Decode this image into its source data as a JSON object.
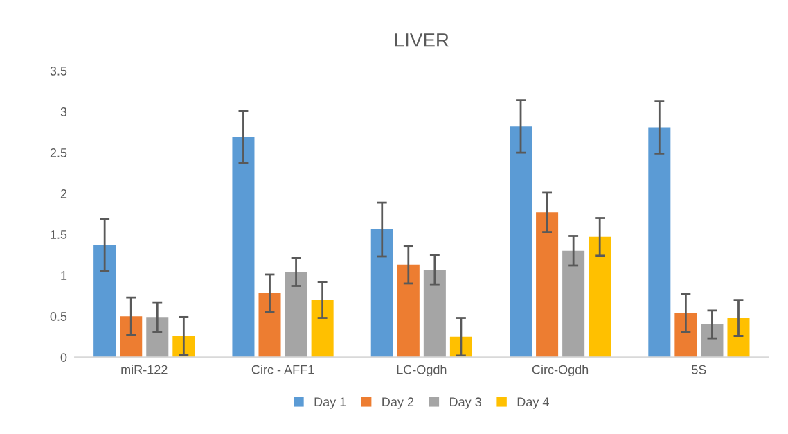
{
  "chart_data": {
    "type": "bar",
    "title": "LIVER",
    "categories": [
      "miR-122",
      "Circ - AFF1",
      "LC-Ogdh",
      "Circ-Ogdh",
      "5S"
    ],
    "series": [
      {
        "name": "Day 1",
        "color": "#5b9bd5",
        "values": [
          1.37,
          2.69,
          1.56,
          2.82,
          2.81
        ],
        "errors": [
          0.32,
          0.32,
          0.33,
          0.32,
          0.32
        ]
      },
      {
        "name": "Day 2",
        "color": "#ed7d31",
        "values": [
          0.5,
          0.78,
          1.13,
          1.77,
          0.54
        ],
        "errors": [
          0.23,
          0.23,
          0.23,
          0.24,
          0.23
        ]
      },
      {
        "name": "Day 3",
        "color": "#a5a5a5",
        "values": [
          0.49,
          1.04,
          1.07,
          1.3,
          0.4
        ],
        "errors": [
          0.18,
          0.17,
          0.18,
          0.18,
          0.17
        ]
      },
      {
        "name": "Day 4",
        "color": "#ffc000",
        "values": [
          0.26,
          0.7,
          0.25,
          1.47,
          0.48
        ],
        "errors": [
          0.23,
          0.22,
          0.23,
          0.23,
          0.22
        ]
      }
    ],
    "ylim": [
      0,
      3.5
    ],
    "yticks": [
      0,
      0.5,
      1,
      1.5,
      2,
      2.5,
      3,
      3.5
    ],
    "grid": false,
    "legend": "bottom"
  }
}
